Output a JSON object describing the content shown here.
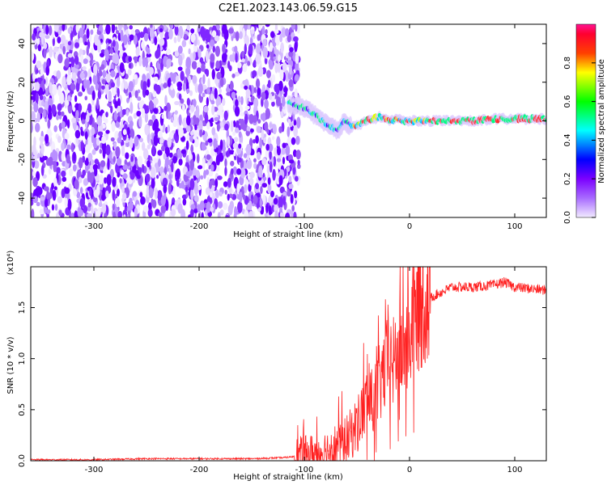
{
  "title": "C2E1.2023.143.06.59.G15",
  "chart_data": [
    {
      "type": "heatmap",
      "xlabel": "Height of straight line (km)",
      "ylabel": "Frequency (Hz)",
      "xlim": [
        -360,
        130
      ],
      "ylim": [
        -50,
        50
      ],
      "xticks": [
        -300,
        -200,
        -100,
        0,
        100
      ],
      "yticks": [
        -40,
        -20,
        0,
        20,
        40
      ],
      "colorbar": {
        "label": "Normalized spectral amplitude",
        "range": [
          0.0,
          1.0
        ],
        "ticks": [
          "0.0",
          "0.2",
          "0.4",
          "0.6",
          "0.8"
        ],
        "colormap": [
          "#f2ebff",
          "#8a2be2",
          "#3f00ff",
          "#0000ff",
          "#00ffff",
          "#00ff00",
          "#ffff00",
          "#ff8000",
          "#ff0000",
          "#ff1493"
        ]
      },
      "noise_region_x": [
        -360,
        -105
      ],
      "ridge": {
        "x": [
          -115,
          -105,
          -95,
          -85,
          -75,
          -68,
          -62,
          -55,
          -48,
          -42,
          -35,
          -28,
          -20,
          -12,
          -5,
          0,
          20,
          40,
          60,
          80,
          100,
          130
        ],
        "y": [
          9,
          8,
          5,
          1,
          -3,
          -5,
          0,
          -3,
          -2,
          0,
          1,
          2,
          0,
          1,
          0,
          0,
          0,
          0,
          0,
          1,
          1,
          1
        ]
      }
    },
    {
      "type": "line",
      "xlabel": "Height of straight line (km)",
      "ylabel": "SNR (10 * v/v)",
      "scale_label": "(x10⁴)",
      "xlim": [
        -360,
        130
      ],
      "ylim": [
        0,
        1.9
      ],
      "xticks": [
        -300,
        -200,
        -100,
        0,
        100
      ],
      "yticks": [
        "0.0",
        "0.5",
        "1.0",
        "1.5"
      ],
      "color": "#ff2020",
      "series": [
        {
          "x": [
            -360,
            -300,
            -250,
            -200,
            -150,
            -120,
            -100,
            -80,
            -60,
            -50,
            -40,
            -35,
            -30,
            -25,
            -20,
            -15,
            -10,
            -5,
            0,
            5,
            10,
            15,
            20,
            30,
            40,
            60,
            80,
            90,
            100,
            120,
            130
          ],
          "y": [
            0.01,
            0.01,
            0.02,
            0.02,
            0.02,
            0.03,
            0.05,
            0.1,
            0.2,
            0.35,
            0.6,
            0.55,
            0.7,
            0.85,
            1.0,
            0.95,
            1.05,
            1.1,
            1.2,
            1.4,
            1.5,
            1.55,
            1.6,
            1.65,
            1.7,
            1.7,
            1.72,
            1.75,
            1.7,
            1.68,
            1.67
          ]
        }
      ]
    }
  ]
}
